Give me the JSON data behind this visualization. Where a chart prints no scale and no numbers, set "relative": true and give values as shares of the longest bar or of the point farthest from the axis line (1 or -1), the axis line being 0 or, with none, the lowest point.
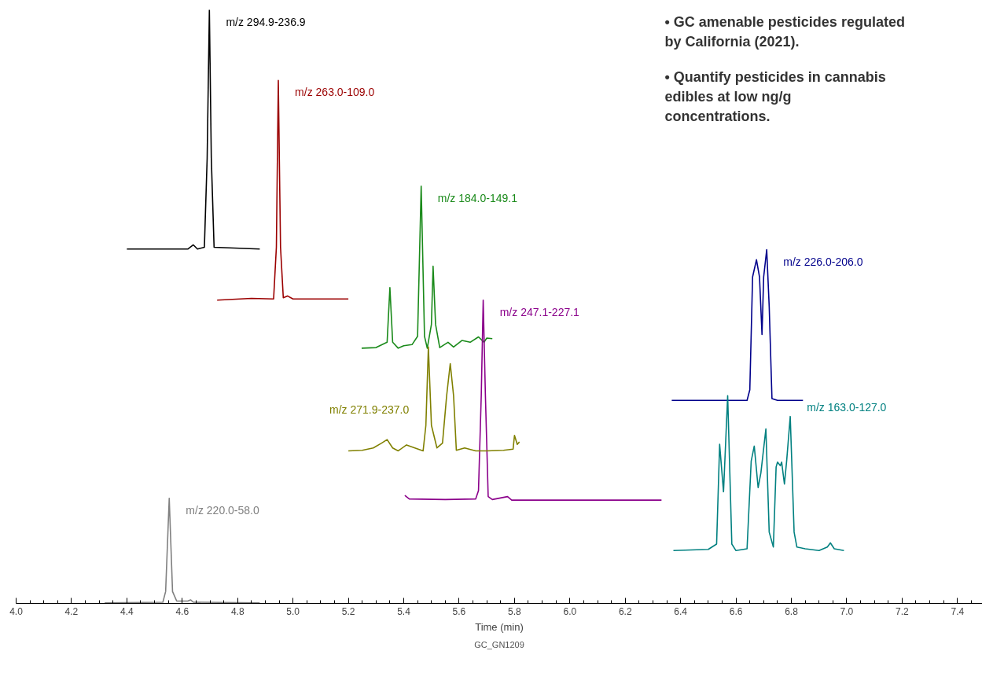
{
  "chart_data": {
    "type": "line",
    "relative": true,
    "xlabel": "Time (min)",
    "xlim": [
      4.0,
      7.49
    ],
    "xticks": [
      {
        "value": 4.0,
        "label": "4.0"
      },
      {
        "value": 4.05,
        "label": null
      },
      {
        "value": 4.1,
        "label": null
      },
      {
        "value": 4.15,
        "label": null
      },
      {
        "value": 4.2,
        "label": "4.2"
      },
      {
        "value": 4.25,
        "label": null
      },
      {
        "value": 4.3,
        "label": null
      },
      {
        "value": 4.35,
        "label": null
      },
      {
        "value": 4.4,
        "label": "4.4"
      },
      {
        "value": 4.45,
        "label": null
      },
      {
        "value": 4.5,
        "label": null
      },
      {
        "value": 4.55,
        "label": null
      },
      {
        "value": 4.6,
        "label": "4.6"
      },
      {
        "value": 4.65,
        "label": null
      },
      {
        "value": 4.7,
        "label": null
      },
      {
        "value": 4.75,
        "label": null
      },
      {
        "value": 4.8,
        "label": "4.8"
      },
      {
        "value": 4.85,
        "label": null
      },
      {
        "value": 4.9,
        "label": null
      },
      {
        "value": 4.95,
        "label": null
      },
      {
        "value": 5.0,
        "label": "5.0"
      },
      {
        "value": 5.05,
        "label": null
      },
      {
        "value": 5.1,
        "label": null
      },
      {
        "value": 5.15,
        "label": null
      },
      {
        "value": 5.2,
        "label": "5.2"
      },
      {
        "value": 5.25,
        "label": null
      },
      {
        "value": 5.3,
        "label": null
      },
      {
        "value": 5.35,
        "label": null
      },
      {
        "value": 5.4,
        "label": "5.4"
      },
      {
        "value": 5.45,
        "label": null
      },
      {
        "value": 5.5,
        "label": null
      },
      {
        "value": 5.55,
        "label": null
      },
      {
        "value": 5.6,
        "label": "5.6"
      },
      {
        "value": 5.65,
        "label": null
      },
      {
        "value": 5.7,
        "label": null
      },
      {
        "value": 5.75,
        "label": null
      },
      {
        "value": 5.8,
        "label": "5.8"
      },
      {
        "value": 5.85,
        "label": null
      },
      {
        "value": 5.9,
        "label": null
      },
      {
        "value": 5.95,
        "label": null
      },
      {
        "value": 6.0,
        "label": "6.0"
      },
      {
        "value": 6.05,
        "label": null
      },
      {
        "value": 6.1,
        "label": null
      },
      {
        "value": 6.15,
        "label": null
      },
      {
        "value": 6.2,
        "label": "6.2"
      },
      {
        "value": 6.25,
        "label": null
      },
      {
        "value": 6.3,
        "label": null
      },
      {
        "value": 6.35,
        "label": null
      },
      {
        "value": 6.4,
        "label": "6.4"
      },
      {
        "value": 6.45,
        "label": null
      },
      {
        "value": 6.5,
        "label": null
      },
      {
        "value": 6.55,
        "label": null
      },
      {
        "value": 6.6,
        "label": "6.6"
      },
      {
        "value": 6.65,
        "label": null
      },
      {
        "value": 6.7,
        "label": null
      },
      {
        "value": 6.75,
        "label": null
      },
      {
        "value": 6.8,
        "label": "6.8"
      },
      {
        "value": 6.85,
        "label": null
      },
      {
        "value": 6.9,
        "label": null
      },
      {
        "value": 6.95,
        "label": null
      },
      {
        "value": 7.0,
        "label": "7.0"
      },
      {
        "value": 7.05,
        "label": null
      },
      {
        "value": 7.1,
        "label": null
      },
      {
        "value": 7.15,
        "label": null
      },
      {
        "value": 7.2,
        "label": "7.2"
      },
      {
        "value": 7.25,
        "label": null
      },
      {
        "value": 7.3,
        "label": null
      },
      {
        "value": 7.35,
        "label": null
      },
      {
        "value": 7.4,
        "label": "7.4"
      },
      {
        "value": 7.45,
        "label": null
      }
    ],
    "grid": false,
    "line_style": "solid",
    "annotations": [
      "• GC amenable pesticides regulated by California (2021).",
      "• Quantify pesticides in cannabis edibles at low ng/g concentrations.",
      "GC_GN1209"
    ],
    "series": [
      {
        "name": "m/z 294.9-236.9",
        "color": "#000000",
        "x": [
          4.4,
          4.62,
          4.64,
          4.655,
          4.68,
          4.69,
          4.698,
          4.705,
          4.715,
          4.88
        ],
        "values": [
          0.597,
          0.597,
          0.604,
          0.597,
          0.6,
          0.75,
          1.0,
          0.75,
          0.6,
          0.597
        ]
      },
      {
        "name": "m/z 263.0-109.0",
        "color": "#9b0000",
        "x": [
          4.726,
          4.85,
          4.93,
          4.94,
          4.947,
          4.955,
          4.965,
          4.98,
          5.0,
          5.2
        ],
        "values": [
          0.511,
          0.514,
          0.513,
          0.6,
          0.881,
          0.6,
          0.515,
          0.518,
          0.513,
          0.513
        ]
      },
      {
        "name": "m/z 184.0-149.1",
        "color": "#1a8a1a",
        "x": [
          5.248,
          5.3,
          5.34,
          5.35,
          5.36,
          5.38,
          5.4,
          5.43,
          5.45,
          5.463,
          5.475,
          5.485,
          5.5,
          5.506,
          5.515,
          5.53,
          5.56,
          5.58,
          5.61,
          5.64,
          5.67,
          5.69,
          5.7,
          5.72
        ],
        "values": [
          0.43,
          0.431,
          0.44,
          0.532,
          0.44,
          0.43,
          0.434,
          0.436,
          0.45,
          0.703,
          0.45,
          0.43,
          0.47,
          0.568,
          0.47,
          0.431,
          0.44,
          0.432,
          0.443,
          0.44,
          0.449,
          0.44,
          0.447,
          0.446
        ]
      },
      {
        "name": "m/z 247.1-227.1",
        "color": "#8b008b",
        "x": [
          5.404,
          5.42,
          5.55,
          5.66,
          5.67,
          5.68,
          5.687,
          5.695,
          5.705,
          5.72,
          5.775,
          5.79,
          6.331
        ],
        "values": [
          0.182,
          0.176,
          0.175,
          0.176,
          0.19,
          0.35,
          0.511,
          0.35,
          0.18,
          0.175,
          0.18,
          0.174,
          0.174
        ]
      },
      {
        "name": "m/z 271.9-237.0",
        "color": "#808000",
        "x": [
          5.2,
          5.25,
          5.29,
          5.32,
          5.34,
          5.36,
          5.38,
          5.41,
          5.44,
          5.47,
          5.48,
          5.489,
          5.5,
          5.52,
          5.54,
          5.555,
          5.568,
          5.58,
          5.59,
          5.62,
          5.66,
          5.7,
          5.76,
          5.795,
          5.8,
          5.81,
          5.818
        ],
        "values": [
          0.257,
          0.258,
          0.262,
          0.27,
          0.276,
          0.262,
          0.257,
          0.267,
          0.262,
          0.257,
          0.3,
          0.432,
          0.3,
          0.262,
          0.27,
          0.35,
          0.404,
          0.35,
          0.258,
          0.262,
          0.257,
          0.257,
          0.258,
          0.26,
          0.283,
          0.268,
          0.272
        ]
      },
      {
        "name": "m/z 226.0-206.0",
        "color": "#00008b",
        "x": [
          6.368,
          6.64,
          6.65,
          6.66,
          6.674,
          6.685,
          6.694,
          6.7,
          6.711,
          6.72,
          6.73,
          6.75,
          6.842
        ],
        "values": [
          0.342,
          0.342,
          0.36,
          0.55,
          0.579,
          0.55,
          0.453,
          0.55,
          0.596,
          0.5,
          0.345,
          0.342,
          0.342
        ]
      },
      {
        "name": "m/z 163.0-127.0",
        "color": "#008080",
        "x": [
          6.374,
          6.5,
          6.53,
          6.541,
          6.555,
          6.57,
          6.585,
          6.6,
          6.64,
          6.655,
          6.666,
          6.68,
          6.69,
          6.708,
          6.72,
          6.735,
          6.745,
          6.75,
          6.76,
          6.765,
          6.775,
          6.783,
          6.796,
          6.81,
          6.82,
          6.85,
          6.9,
          6.93,
          6.941,
          6.955,
          6.99
        ],
        "values": [
          0.089,
          0.091,
          0.1,
          0.268,
          0.188,
          0.35,
          0.1,
          0.089,
          0.092,
          0.24,
          0.265,
          0.195,
          0.22,
          0.294,
          0.12,
          0.095,
          0.23,
          0.238,
          0.232,
          0.238,
          0.201,
          0.24,
          0.315,
          0.12,
          0.095,
          0.092,
          0.089,
          0.095,
          0.102,
          0.092,
          0.089
        ]
      },
      {
        "name": "m/z 220.0-58.0",
        "color": "#808080",
        "x": [
          4.32,
          4.53,
          4.54,
          4.553,
          4.565,
          4.58,
          4.62,
          4.63,
          4.64,
          4.88
        ],
        "values": [
          0.001,
          0.002,
          0.02,
          0.177,
          0.02,
          0.004,
          0.004,
          0.006,
          0.002,
          0.001
        ]
      }
    ]
  }
}
